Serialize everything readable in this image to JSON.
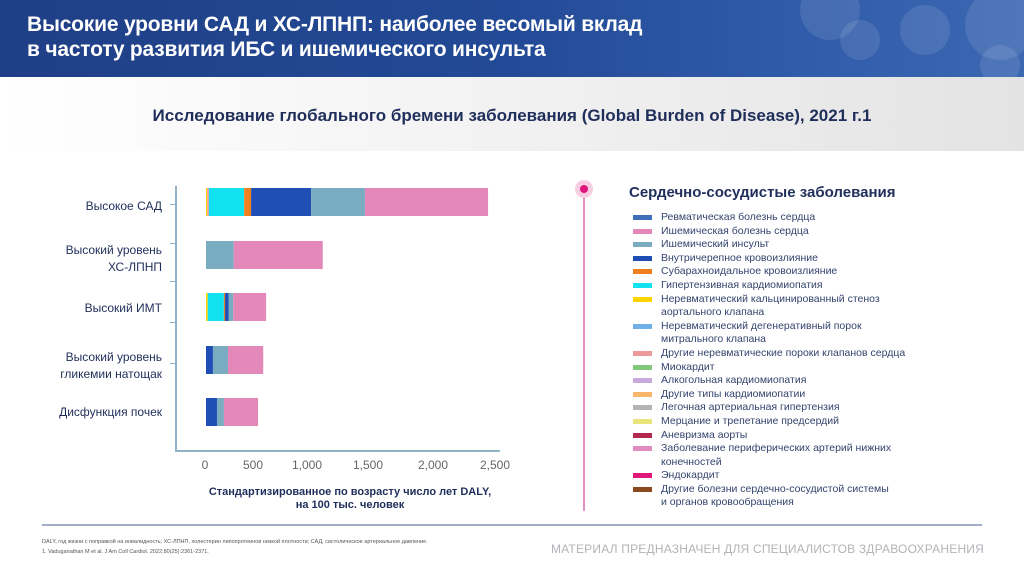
{
  "header": {
    "title_line1": "Высокие уровни САД и ХС-ЛПНП: наиболее весомый вклад",
    "title_line2": "в частоту развития ИБС и ишемического инсульта"
  },
  "subtitle": "Исследование глобального бремени заболевания (Global Burden of Disease), 2021 г.1",
  "chart_data": {
    "type": "bar",
    "orientation": "horizontal",
    "stacked": true,
    "title": "Исследование глобального бремени заболевания (Global Burden of Disease), 2021 г.1",
    "xlabel": "Стандартизированное по возрасту число лет DALY, на 100 тыс. человек",
    "xlabel_line1": "Стандартизированное по возрасту число лет DALY,",
    "xlabel_line2": "на 100 тыс. человек",
    "ylabel": "",
    "xlim": [
      0,
      2500
    ],
    "xticks": [
      "0",
      "500",
      "1,000",
      "1,500",
      "2,000",
      "2,500"
    ],
    "xtick_values": [
      0,
      500,
      1000,
      1500,
      2000,
      2500
    ],
    "grid": false,
    "legend_position": "right",
    "categories": [
      {
        "line1": "Высокое САД",
        "line2": ""
      },
      {
        "line1": "Высокий уровень",
        "line2": "ХС-ЛПНП"
      },
      {
        "line1": "Высокий ИМТ",
        "line2": ""
      },
      {
        "line1": "Высокий уровень",
        "line2": "гликемии натощак"
      },
      {
        "line1": "Дисфункция почек",
        "line2": ""
      }
    ],
    "series": [
      {
        "name": "Неревматический кальцинированный стеноз аортального клапана",
        "color": "#ffd400",
        "values": [
          10,
          0,
          15,
          0,
          0
        ]
      },
      {
        "name": "Другие нереватические пороки",
        "color": "#ef9a9a",
        "values": [
          15,
          0,
          0,
          0,
          0
        ]
      },
      {
        "name": "Гипертензивная кардиомиопатия",
        "color": "#12e2f0",
        "values": [
          305,
          0,
          140,
          0,
          0
        ]
      },
      {
        "name": "Субарахноидальное кровоизлияние",
        "color": "#f07f1e",
        "values": [
          60,
          0,
          10,
          0,
          0
        ]
      },
      {
        "name": "Внутричерепное кровоизлияние",
        "color": "#1f4fb5",
        "values": [
          520,
          0,
          30,
          60,
          95
        ]
      },
      {
        "name": "Ишемический инсульт",
        "color": "#79acc0",
        "values": [
          465,
          240,
          40,
          130,
          60
        ]
      },
      {
        "name": "Ишемическая болезнь сердца",
        "color": "#e388b8",
        "values": [
          1065,
          770,
          285,
          305,
          295
        ]
      }
    ]
  },
  "legend": {
    "title": "Сердечно-сосудистые заболевания",
    "items": [
      {
        "label": "Ревматическая болезнь сердца",
        "label2": "",
        "color": "#3f6fb8"
      },
      {
        "label": "Ишемическая болезнь сердца",
        "label2": "",
        "color": "#e388b8"
      },
      {
        "label": "Ишемический инсульт",
        "label2": "",
        "color": "#79acc0"
      },
      {
        "label": "Внутричерепное кровоизлияние",
        "label2": "",
        "color": "#1f4fb5"
      },
      {
        "label": "Субарахноидальное кровоизлияние",
        "label2": "",
        "color": "#f07f1e"
      },
      {
        "label": "Гипертензивная кардиомиопатия",
        "label2": "",
        "color": "#12e2f0"
      },
      {
        "label": "Неревматический кальцинированный стеноз",
        "label2": "аортального клапана",
        "color": "#ffd400"
      },
      {
        "label": "Неревматический дегенеративный порок",
        "label2": "митрального клапана",
        "color": "#6fb1e6"
      },
      {
        "label": "Другие неревматические пороки клапанов сердца",
        "label2": "",
        "color": "#ef9a9a"
      },
      {
        "label": "Миокардит",
        "label2": "",
        "color": "#82c87a"
      },
      {
        "label": "Алкогольная кардиомиопатия",
        "label2": "",
        "color": "#c8a9dc"
      },
      {
        "label": "Другие типы кардиомиопатии",
        "label2": "",
        "color": "#f9b56a"
      },
      {
        "label": "Легочная артериальная гипертензия",
        "label2": "",
        "color": "#b4b4b4"
      },
      {
        "label": "Мерцание и трепетание предсердий",
        "label2": "",
        "color": "#e8e47a"
      },
      {
        "label": "Аневризма аорты",
        "label2": "",
        "color": "#b2284f"
      },
      {
        "label": "Заболевание периферических артерий нижних",
        "label2": "конечностей",
        "color": "#e08cc0"
      },
      {
        "label": "Эндокардит",
        "label2": "",
        "color": "#e0177a"
      },
      {
        "label": "Другие болезни сердечно-сосудистой системы",
        "label2": "и органов кровообращения",
        "color": "#8a4a1e"
      }
    ]
  },
  "footer": {
    "abbrev": "DALY, год жизни с поправкой на инвалидность; ХС-ЛПНП, холестерин липопротеинов низкой плотности; САД, систолическое артериальное давление.",
    "reference": "1. Vaduganathan M et al. J Am Coll Cardiol. 2022;80(25):2361-2371.",
    "disclaimer": "МАТЕРИАЛ ПРЕДНАЗНАЧЕН ДЛЯ СПЕЦИАЛИСТОВ ЗДРАВООХРАНЕНИЯ"
  }
}
